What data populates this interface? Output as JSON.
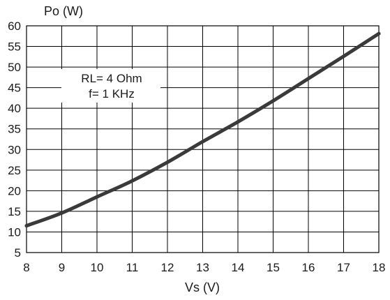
{
  "chart_data": {
    "type": "line",
    "title": "",
    "xlabel": "Vs (V)",
    "ylabel": "Po (W)",
    "xlim": [
      8,
      18
    ],
    "ylim": [
      5,
      60
    ],
    "x_ticks": [
      "8",
      "9",
      "10",
      "11",
      "12",
      "13",
      "14",
      "15",
      "16",
      "17",
      "18"
    ],
    "y_ticks": [
      "5",
      "10",
      "15",
      "20",
      "25",
      "30",
      "35",
      "40",
      "45",
      "50",
      "55",
      "60"
    ],
    "grid": true,
    "series": [
      {
        "x": [
          8,
          9,
          10,
          11,
          12,
          13,
          14,
          15,
          16,
          17,
          18
        ],
        "y": [
          11.5,
          14.6,
          18.5,
          22.4,
          26.9,
          31.9,
          36.7,
          41.8,
          47.2,
          52.6,
          58.1
        ]
      }
    ],
    "annotation": [
      "RL= 4 Ohm",
      "f= 1 KHz"
    ],
    "line_color": "#3a3a3a"
  }
}
